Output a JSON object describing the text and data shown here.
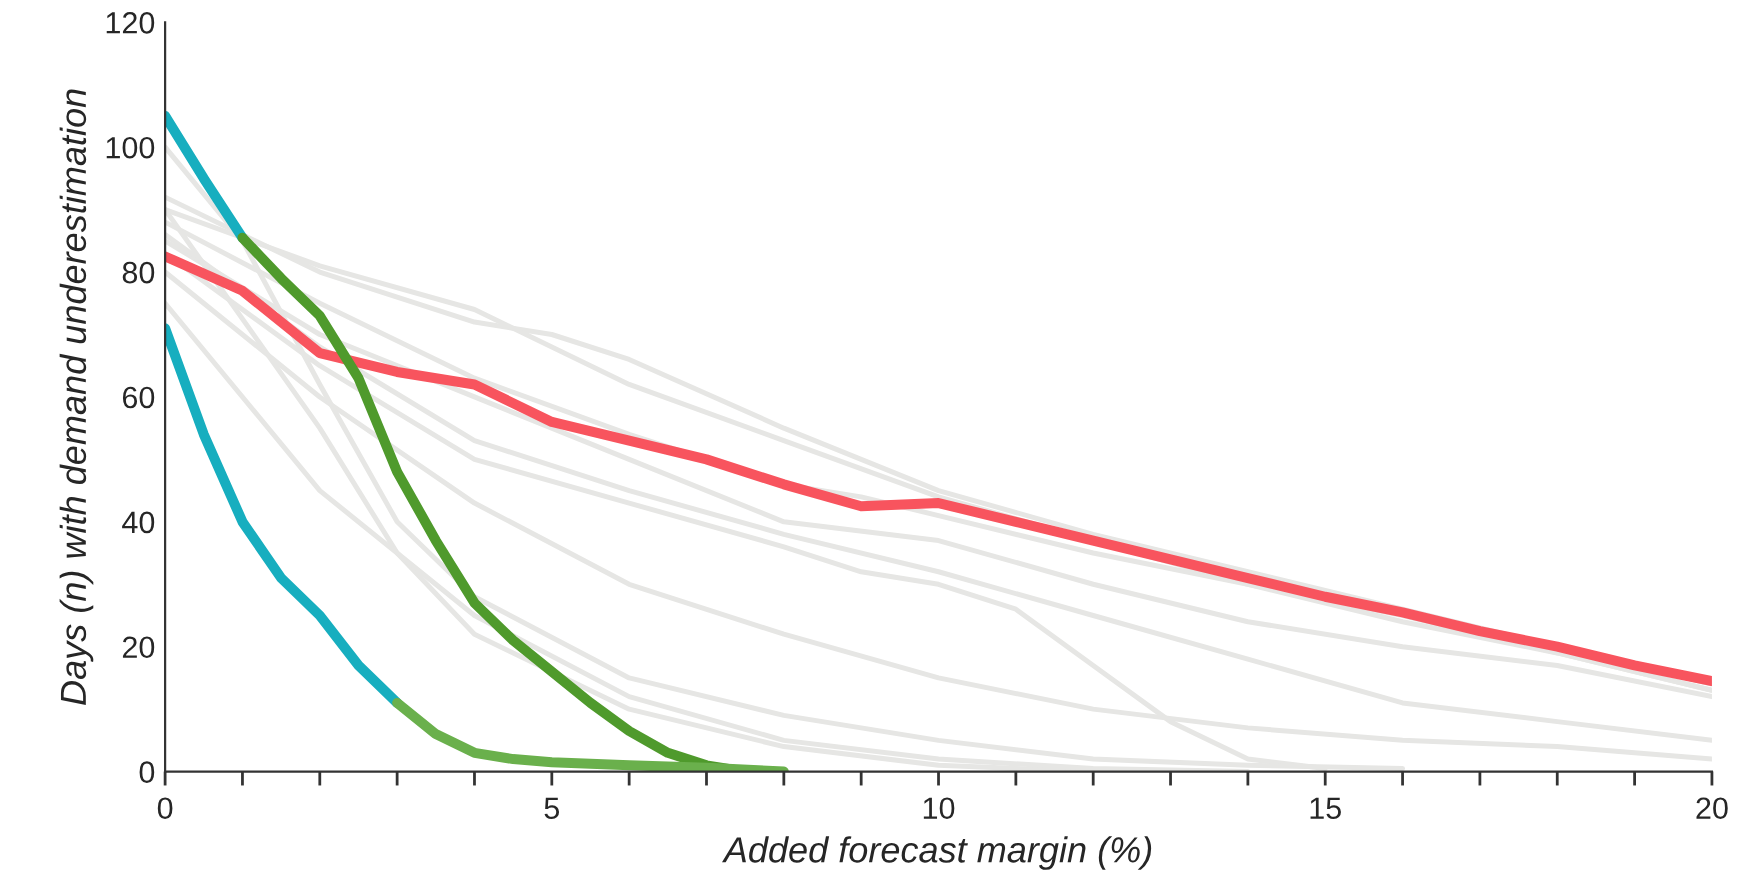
{
  "chart_data": {
    "type": "line",
    "xlabel": "Added forecast margin (%)",
    "ylabel": "Days (n) with demand underestimation",
    "xlim": [
      0,
      20
    ],
    "ylim": [
      0,
      120
    ],
    "xticks": [
      0,
      {
        "value": 1,
        "label": null
      },
      {
        "value": 2,
        "label": null
      },
      {
        "value": 3,
        "label": null
      },
      {
        "value": 4,
        "label": null
      },
      5,
      {
        "value": 6,
        "label": null
      },
      {
        "value": 7,
        "label": null
      },
      {
        "value": 8,
        "label": null
      },
      {
        "value": 9,
        "label": null
      },
      10,
      {
        "value": 11,
        "label": null
      },
      {
        "value": 12,
        "label": null
      },
      {
        "value": 13,
        "label": null
      },
      {
        "value": 14,
        "label": null
      },
      15,
      {
        "value": 16,
        "label": null
      },
      {
        "value": 17,
        "label": null
      },
      {
        "value": 18,
        "label": null
      },
      {
        "value": 19,
        "label": null
      },
      20
    ],
    "yticks": [
      0,
      20,
      40,
      60,
      80,
      100,
      120
    ],
    "grid": false,
    "series": [
      {
        "color": "#e6e6e4",
        "x": [
          0,
          2,
          4,
          5,
          6,
          8,
          10,
          12,
          14,
          16,
          18,
          20
        ],
        "values": [
          92,
          80,
          72,
          70,
          66,
          55,
          45,
          38,
          32,
          26,
          20,
          14
        ]
      },
      {
        "color": "#e6e6e4",
        "x": [
          0,
          2,
          4,
          6,
          8,
          10,
          12,
          14,
          16,
          18,
          20
        ],
        "values": [
          90,
          81,
          74,
          62,
          53,
          44,
          37,
          30,
          24,
          19,
          13
        ]
      },
      {
        "color": "#e6e6e4",
        "x": [
          0,
          2,
          4,
          6,
          8,
          9,
          10,
          12,
          14,
          16,
          18,
          20
        ],
        "values": [
          88,
          75,
          63,
          54,
          46,
          44,
          41,
          35,
          30,
          25,
          19,
          13
        ]
      },
      {
        "color": "#e6e6e4",
        "x": [
          0,
          2,
          4,
          6,
          8,
          10,
          12,
          14,
          16,
          18,
          20
        ],
        "values": [
          85,
          70,
          60,
          50,
          40,
          37,
          30,
          24,
          20,
          17,
          12
        ]
      },
      {
        "color": "#e6e6e4",
        "x": [
          0,
          2,
          4,
          6,
          8,
          9,
          10,
          11,
          12,
          13,
          14,
          15
        ],
        "values": [
          83,
          65,
          50,
          43,
          36,
          32,
          30,
          26,
          17,
          8,
          2,
          0.5
        ]
      },
      {
        "color": "#e6e6e4",
        "x": [
          0,
          2,
          4,
          6,
          8,
          10,
          12,
          14,
          16,
          18,
          20
        ],
        "values": [
          86,
          68,
          53,
          45,
          38,
          32,
          25,
          18,
          11,
          8,
          5
        ]
      },
      {
        "color": "#e6e6e4",
        "x": [
          0,
          2,
          4,
          6,
          8,
          10,
          12,
          14,
          16,
          18,
          20
        ],
        "values": [
          80,
          60,
          43,
          30,
          22,
          15,
          10,
          7,
          5,
          4,
          2
        ]
      },
      {
        "color": "#e6e6e4",
        "x": [
          0,
          1,
          2,
          3,
          4,
          6,
          8,
          10,
          12,
          14,
          16
        ],
        "values": [
          100,
          85,
          62,
          40,
          28,
          15,
          9,
          5,
          2,
          1,
          0.5
        ]
      },
      {
        "color": "#e6e6e4",
        "x": [
          0,
          2,
          3,
          4,
          6,
          8,
          10,
          12
        ],
        "values": [
          90,
          55,
          35,
          22,
          10,
          4,
          1,
          0
        ]
      },
      {
        "color": "#e6e6e4",
        "x": [
          0,
          2,
          4,
          6,
          8,
          10,
          12,
          14
        ],
        "values": [
          75,
          45,
          25,
          12,
          5,
          2,
          0.5,
          0
        ]
      },
      {
        "color": "#f8545e",
        "x": [
          0,
          1,
          2,
          3,
          4,
          5,
          6,
          7,
          8,
          9,
          10,
          11,
          12,
          13,
          14,
          15,
          16,
          17,
          18,
          19,
          20
        ],
        "values": [
          82.5,
          77,
          67,
          64,
          62,
          56,
          53,
          50,
          46,
          42.5,
          43,
          40,
          37,
          34,
          31,
          28,
          25.5,
          22.5,
          20,
          17,
          14.5
        ]
      },
      {
        "color": "#17aebf",
        "x": [
          0,
          0.5,
          1
        ],
        "values": [
          105,
          95,
          85.5
        ]
      },
      {
        "color": "#4f9a2c",
        "x": [
          1,
          1.5,
          2,
          2.5,
          3,
          3.5,
          4,
          4.5,
          5,
          5.5,
          6,
          6.5,
          7,
          7.5
        ],
        "values": [
          85.5,
          79,
          73,
          63,
          48,
          37,
          27,
          21,
          16,
          11,
          6.5,
          3,
          1,
          0
        ]
      },
      {
        "color": "#17aebf",
        "x": [
          0,
          0.5,
          1,
          1.5,
          2,
          2.5,
          3
        ],
        "values": [
          71,
          54,
          40,
          31,
          25,
          17,
          11
        ]
      },
      {
        "color": "#6ab04c",
        "x": [
          3,
          3.5,
          4,
          4.5,
          5,
          6,
          7,
          8
        ],
        "values": [
          11,
          6,
          3,
          2,
          1.5,
          1,
          0.6,
          0
        ]
      }
    ]
  }
}
